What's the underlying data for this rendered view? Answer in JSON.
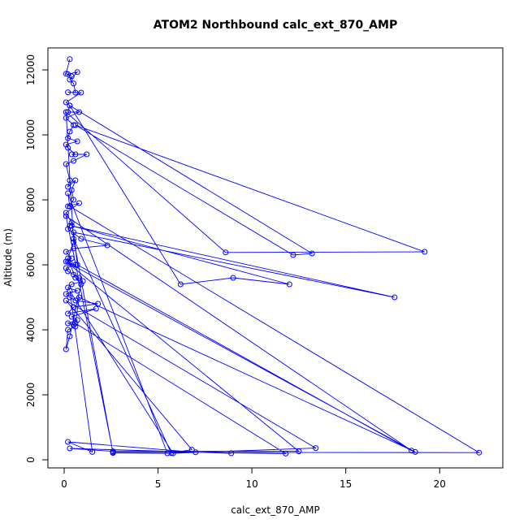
{
  "chart_data": {
    "type": "line",
    "title": "ATOM2 Northbound calc_ext_870_AMP",
    "xlabel": "calc_ext_870_AMP",
    "ylabel": "Altitude (m)",
    "xlim": [
      0,
      22.5
    ],
    "ylim": [
      0,
      12400
    ],
    "xticks": [
      0,
      5,
      10,
      15,
      20
    ],
    "yticks": [
      0,
      2000,
      4000,
      6000,
      8000,
      10000,
      12000
    ],
    "series_color": "#0000ff",
    "grid": false,
    "marker": "open-circle",
    "x": [
      0.3,
      0.1,
      0.4,
      0.2,
      0.7,
      0.3,
      0.5,
      0.6,
      0.2,
      0.9,
      0.1,
      0.3,
      0.2,
      0.8,
      0.1,
      0.5,
      0.3,
      0.2,
      0.7,
      0.1,
      0.2,
      0.6,
      0.4,
      1.2,
      0.5,
      0.1,
      0.3,
      0.2,
      0.6,
      0.4,
      0.5,
      0.2,
      0.8,
      0.1,
      0.4,
      0.3,
      0.2,
      0.9,
      2.3,
      0.5,
      0.1,
      0.4,
      0.2,
      0.3,
      0.6,
      0.1,
      0.2,
      0.5,
      0.8,
      1.0,
      0.4,
      0.2,
      0.7,
      0.1,
      0.3,
      0.6,
      1.8,
      0.5,
      0.2,
      1.7,
      0.4,
      0.7,
      0.2,
      0.5,
      0.6,
      0.2,
      0.1,
      0.3,
      0.9,
      0.6,
      0.2,
      0.5,
      0.1,
      8.6,
      19.2,
      0.6,
      12.2,
      13.2,
      0.3,
      6.2,
      9.0,
      12.0,
      0.4,
      17.6,
      0.5,
      0.7,
      18.5,
      0.1,
      2.6,
      22.1,
      0.3,
      0.2,
      5.5,
      2.6,
      0.5,
      5.7,
      6.8,
      0.1,
      13.4,
      5.8,
      0.3,
      1.5,
      0.2,
      7.0,
      11.8,
      0.6,
      0.8,
      18.7,
      0.1,
      12.5,
      2.6,
      0.3,
      8.9
    ],
    "y": [
      12330,
      11880,
      11800,
      11870,
      11930,
      11700,
      11580,
      11300,
      11310,
      11300,
      11000,
      10900,
      10700,
      10700,
      10520,
      10300,
      10100,
      9900,
      9800,
      9700,
      9600,
      9400,
      9400,
      9400,
      9200,
      9100,
      8600,
      8400,
      8600,
      8300,
      8000,
      7800,
      7900,
      7600,
      7300,
      7200,
      7100,
      6800,
      6600,
      6500,
      6400,
      6200,
      6100,
      6050,
      6000,
      5900,
      5800,
      5700,
      5600,
      5500,
      5400,
      5300,
      5200,
      5100,
      5000,
      4900,
      4800,
      4700,
      4500,
      4650,
      4400,
      4300,
      4200,
      4150,
      4100,
      4000,
      3400,
      3800,
      5400,
      5600,
      6200,
      6700,
      10700,
      6380,
      6400,
      10300,
      6300,
      6350,
      10900,
      5400,
      5600,
      5400,
      7200,
      5000,
      7000,
      6000,
      280,
      7500,
      230,
      220,
      7800,
      8200,
      200,
      210,
      6800,
      210,
      310,
      4900,
      360,
      200,
      5200,
      240,
      550,
      230,
      190,
      4200,
      5000,
      240,
      6100,
      260,
      260,
      350,
      200
    ]
  }
}
